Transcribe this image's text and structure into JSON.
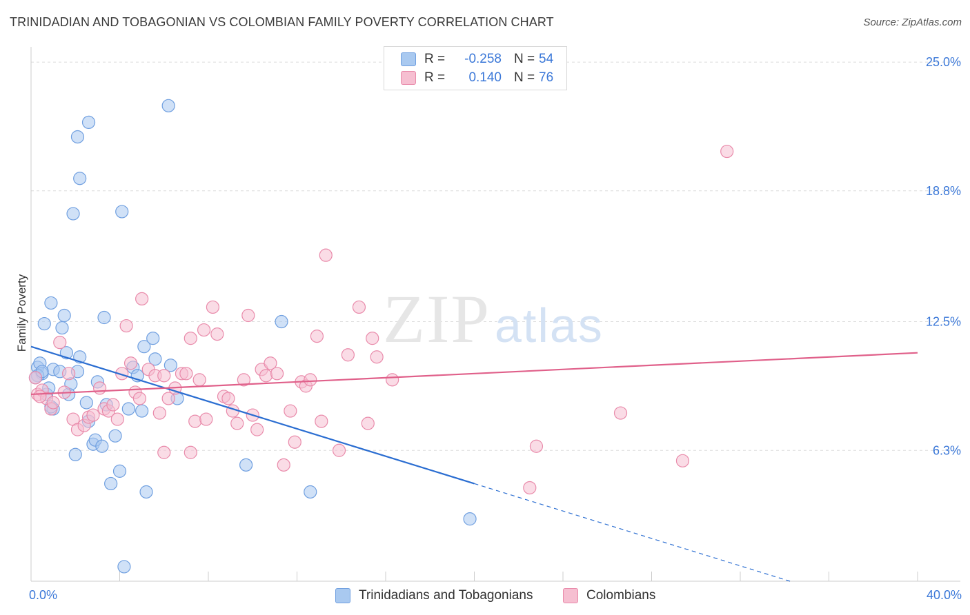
{
  "title": "TRINIDADIAN AND TOBAGONIAN VS COLOMBIAN FAMILY POVERTY CORRELATION CHART",
  "source": "Source: ZipAtlas.com",
  "watermark": {
    "zip": "ZIP",
    "atlas": "atlas"
  },
  "legend_top": [
    {
      "r_label": "R =",
      "r_value": "-0.258",
      "n_label": "N =",
      "n_value": "54",
      "color": "#a9c9f0",
      "stroke": "#6f9fe0"
    },
    {
      "r_label": "R =",
      "r_value": "0.140",
      "n_label": "N =",
      "n_value": "76",
      "color": "#f6bfd1",
      "stroke": "#e98aaa"
    }
  ],
  "legend_bottom": [
    {
      "label": "Trinidadians and Tobagonians",
      "color": "#a9c9f0",
      "stroke": "#6f9fe0"
    },
    {
      "label": "Colombians",
      "color": "#f6bfd1",
      "stroke": "#e98aaa"
    }
  ],
  "chart_data": {
    "type": "scatter",
    "title": "TRINIDADIAN AND TOBAGONIAN VS COLOMBIAN FAMILY POVERTY CORRELATION CHART",
    "xlabel": "",
    "ylabel": "Family Poverty",
    "xlim": [
      0,
      40
    ],
    "ylim": [
      0,
      25.6
    ],
    "x_tick_labels": [
      "0.0%",
      "40.0%"
    ],
    "y_ticks": [
      6.3,
      12.5,
      18.8,
      25.0
    ],
    "y_tick_labels": [
      "6.3%",
      "12.5%",
      "18.8%",
      "25.0%"
    ],
    "grid": true,
    "series": [
      {
        "name": "Trinidadians and Tobagonians",
        "color": "#6f9fe0",
        "fill": "#a9c9f0",
        "trend_color": "#2a6dd1",
        "trend": {
          "x0": 0.0,
          "y0": 11.3,
          "x1": 20.0,
          "y1": 4.7,
          "dash_to_x": 40.0
        },
        "points": [
          [
            0.3,
            10.3
          ],
          [
            0.4,
            10.5
          ],
          [
            0.5,
            10.0
          ],
          [
            0.3,
            9.9
          ],
          [
            0.6,
            12.4
          ],
          [
            0.9,
            13.4
          ],
          [
            0.7,
            9.0
          ],
          [
            0.8,
            9.3
          ],
          [
            1.0,
            10.2
          ],
          [
            1.3,
            10.1
          ],
          [
            1.0,
            8.3
          ],
          [
            1.4,
            12.2
          ],
          [
            1.5,
            12.8
          ],
          [
            1.6,
            11.0
          ],
          [
            1.7,
            9.0
          ],
          [
            1.8,
            9.5
          ],
          [
            2.1,
            10.1
          ],
          [
            2.2,
            10.8
          ],
          [
            2.5,
            8.6
          ],
          [
            2.6,
            7.7
          ],
          [
            2.8,
            6.6
          ],
          [
            2.9,
            6.8
          ],
          [
            3.0,
            9.6
          ],
          [
            3.2,
            6.5
          ],
          [
            3.3,
            12.7
          ],
          [
            3.4,
            8.5
          ],
          [
            3.8,
            7.0
          ],
          [
            4.0,
            5.3
          ],
          [
            3.6,
            4.7
          ],
          [
            4.4,
            8.3
          ],
          [
            4.6,
            10.3
          ],
          [
            4.8,
            9.9
          ],
          [
            5.0,
            8.2
          ],
          [
            5.1,
            11.3
          ],
          [
            5.5,
            11.7
          ],
          [
            5.6,
            10.7
          ],
          [
            6.3,
            10.4
          ],
          [
            6.6,
            8.8
          ],
          [
            5.2,
            4.3
          ],
          [
            4.2,
            0.7
          ],
          [
            2.0,
            6.1
          ],
          [
            1.9,
            17.7
          ],
          [
            2.2,
            19.4
          ],
          [
            2.1,
            21.4
          ],
          [
            2.6,
            22.1
          ],
          [
            4.1,
            17.8
          ],
          [
            6.2,
            22.9
          ],
          [
            11.3,
            12.5
          ],
          [
            9.7,
            5.6
          ],
          [
            12.6,
            4.3
          ],
          [
            19.8,
            3.0
          ],
          [
            0.2,
            9.8
          ],
          [
            0.5,
            10.1
          ],
          [
            0.9,
            8.4
          ]
        ]
      },
      {
        "name": "Colombians",
        "color": "#e98aaa",
        "fill": "#f6bfd1",
        "trend_color": "#e0608a",
        "trend": {
          "x0": 0.0,
          "y0": 9.0,
          "x1": 40.0,
          "y1": 11.0
        },
        "points": [
          [
            0.2,
            9.8
          ],
          [
            0.3,
            9.0
          ],
          [
            0.5,
            9.2
          ],
          [
            0.7,
            8.8
          ],
          [
            0.9,
            8.3
          ],
          [
            1.0,
            8.6
          ],
          [
            1.3,
            11.5
          ],
          [
            1.5,
            9.1
          ],
          [
            1.7,
            10.0
          ],
          [
            1.9,
            7.8
          ],
          [
            2.1,
            7.3
          ],
          [
            2.4,
            7.5
          ],
          [
            2.6,
            7.9
          ],
          [
            2.8,
            8.0
          ],
          [
            3.1,
            9.3
          ],
          [
            3.3,
            8.3
          ],
          [
            3.5,
            8.2
          ],
          [
            3.7,
            8.5
          ],
          [
            3.9,
            7.8
          ],
          [
            4.1,
            10.0
          ],
          [
            4.3,
            12.3
          ],
          [
            4.5,
            10.5
          ],
          [
            4.7,
            9.1
          ],
          [
            4.9,
            8.8
          ],
          [
            5.0,
            13.6
          ],
          [
            5.3,
            10.2
          ],
          [
            5.6,
            9.9
          ],
          [
            5.8,
            8.1
          ],
          [
            6.0,
            9.9
          ],
          [
            6.2,
            8.8
          ],
          [
            6.5,
            9.3
          ],
          [
            6.8,
            10.0
          ],
          [
            7.0,
            10.0
          ],
          [
            7.2,
            11.7
          ],
          [
            7.4,
            7.7
          ],
          [
            7.6,
            9.7
          ],
          [
            7.8,
            12.1
          ],
          [
            7.9,
            7.8
          ],
          [
            8.2,
            13.2
          ],
          [
            8.4,
            11.9
          ],
          [
            8.7,
            8.9
          ],
          [
            8.9,
            8.8
          ],
          [
            9.1,
            8.2
          ],
          [
            9.3,
            7.6
          ],
          [
            9.6,
            9.7
          ],
          [
            9.8,
            12.8
          ],
          [
            10.0,
            8.0
          ],
          [
            10.2,
            7.3
          ],
          [
            10.4,
            10.2
          ],
          [
            10.6,
            9.9
          ],
          [
            10.8,
            10.5
          ],
          [
            11.1,
            10.0
          ],
          [
            11.4,
            5.6
          ],
          [
            11.7,
            8.2
          ],
          [
            11.9,
            6.7
          ],
          [
            12.2,
            9.6
          ],
          [
            12.4,
            9.4
          ],
          [
            12.6,
            9.7
          ],
          [
            12.9,
            11.8
          ],
          [
            13.1,
            7.7
          ],
          [
            13.3,
            15.7
          ],
          [
            13.9,
            6.3
          ],
          [
            14.3,
            10.9
          ],
          [
            14.8,
            13.2
          ],
          [
            15.2,
            7.6
          ],
          [
            15.4,
            11.7
          ],
          [
            15.6,
            10.8
          ],
          [
            16.3,
            9.7
          ],
          [
            6.0,
            6.2
          ],
          [
            7.2,
            6.2
          ],
          [
            22.5,
            4.5
          ],
          [
            22.8,
            6.5
          ],
          [
            26.6,
            8.1
          ],
          [
            29.4,
            5.8
          ],
          [
            31.4,
            20.7
          ],
          [
            0.4,
            8.9
          ]
        ]
      }
    ]
  }
}
